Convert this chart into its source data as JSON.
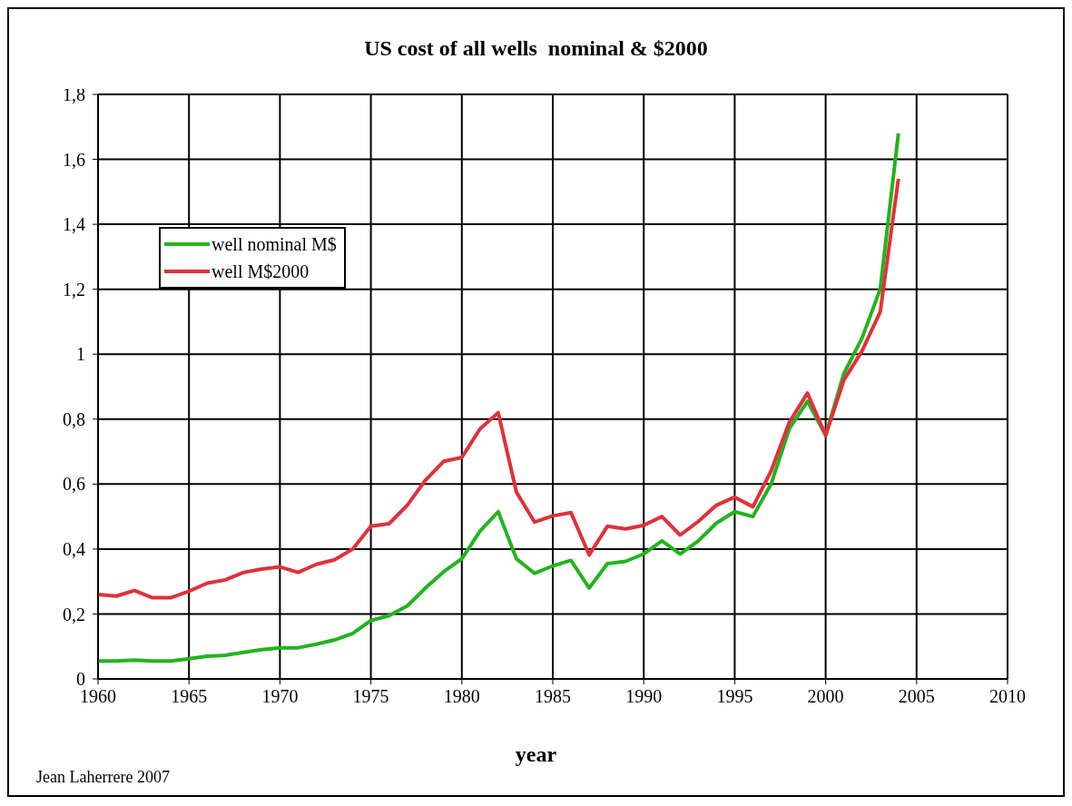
{
  "chart_data": {
    "type": "line",
    "title": "US cost of all wells  nominal & $2000",
    "xlabel": "year",
    "x": [
      1960,
      1961,
      1962,
      1963,
      1964,
      1965,
      1966,
      1967,
      1968,
      1969,
      1970,
      1971,
      1972,
      1973,
      1974,
      1975,
      1976,
      1977,
      1978,
      1979,
      1980,
      1981,
      1982,
      1983,
      1984,
      1985,
      1986,
      1987,
      1988,
      1989,
      1990,
      1991,
      1992,
      1993,
      1994,
      1995,
      1996,
      1997,
      1998,
      1999,
      2000,
      2001,
      2002,
      2003,
      2004
    ],
    "series": [
      {
        "name": "well nominal M$",
        "color": "#22b41e",
        "values": [
          0.055,
          0.055,
          0.058,
          0.055,
          0.055,
          0.062,
          0.07,
          0.073,
          0.082,
          0.09,
          0.096,
          0.096,
          0.107,
          0.12,
          0.14,
          0.18,
          0.195,
          0.225,
          0.28,
          0.33,
          0.37,
          0.455,
          0.515,
          0.37,
          0.325,
          0.348,
          0.365,
          0.28,
          0.355,
          0.362,
          0.385,
          0.425,
          0.385,
          0.425,
          0.48,
          0.515,
          0.5,
          0.6,
          0.77,
          0.855,
          0.75,
          0.94,
          1.05,
          1.2,
          1.68
        ]
      },
      {
        "name": "well M$2000",
        "color": "#e0313a",
        "values": [
          0.26,
          0.255,
          0.272,
          0.25,
          0.25,
          0.27,
          0.295,
          0.305,
          0.328,
          0.338,
          0.345,
          0.328,
          0.353,
          0.367,
          0.4,
          0.47,
          0.478,
          0.535,
          0.612,
          0.67,
          0.682,
          0.77,
          0.82,
          0.575,
          0.483,
          0.502,
          0.512,
          0.382,
          0.47,
          0.462,
          0.473,
          0.5,
          0.443,
          0.485,
          0.535,
          0.56,
          0.53,
          0.64,
          0.79,
          0.88,
          0.75,
          0.92,
          1.01,
          1.13,
          1.54
        ]
      }
    ],
    "xlim": [
      1960,
      2010
    ],
    "xticks": [
      1960,
      1965,
      1970,
      1975,
      1980,
      1985,
      1990,
      1995,
      2000,
      2005,
      2010
    ],
    "ylim": [
      0,
      1.8
    ],
    "yticks": [
      {
        "value": 0,
        "label": "0"
      },
      {
        "value": 0.2,
        "label": "0,2"
      },
      {
        "value": 0.4,
        "label": "0,4"
      },
      {
        "value": 0.6,
        "label": "0,6"
      },
      {
        "value": 0.8,
        "label": "0,8"
      },
      {
        "value": 1,
        "label": "1"
      },
      {
        "value": 1.2,
        "label": "1,2"
      },
      {
        "value": 1.4,
        "label": "1,4"
      },
      {
        "value": 1.6,
        "label": "1,6"
      },
      {
        "value": 1.8,
        "label": "1,8"
      }
    ],
    "grid": true,
    "legend": "top left",
    "marker": "none",
    "line_style": "solid",
    "annotations": [
      "Jean Laherrere 2007"
    ]
  }
}
